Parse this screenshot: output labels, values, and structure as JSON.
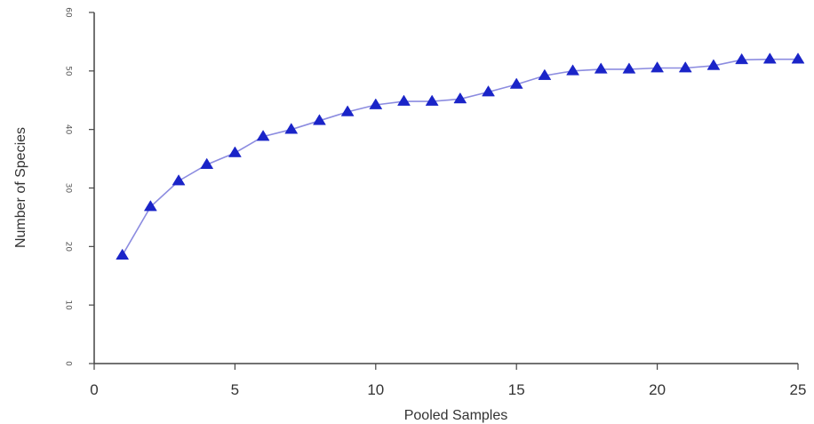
{
  "chart_data": {
    "type": "line",
    "xlabel": "Pooled Samples",
    "ylabel": "Number of Species",
    "xlim": [
      0,
      25
    ],
    "ylim": [
      0,
      60
    ],
    "x_ticks": [
      0,
      5,
      10,
      15,
      20,
      25
    ],
    "y_ticks": [
      0,
      10,
      20,
      30,
      40,
      50,
      60
    ],
    "grid": false,
    "marker": "triangle",
    "colors": {
      "line": "#8c8ce0",
      "marker": "#1a24c8"
    },
    "x": [
      1,
      2,
      3,
      4,
      5,
      6,
      7,
      8,
      9,
      10,
      11,
      12,
      13,
      14,
      15,
      16,
      17,
      18,
      19,
      20,
      21,
      22,
      23,
      24,
      25
    ],
    "series": [
      {
        "values": [
          18.5,
          26.8,
          31.2,
          34,
          36,
          38.8,
          40,
          41.5,
          43,
          44.2,
          44.8,
          44.8,
          45.2,
          46.4,
          47.7,
          49.2,
          50,
          50.3,
          50.3,
          50.5,
          50.5,
          50.9,
          51.9,
          52,
          52
        ]
      }
    ]
  }
}
